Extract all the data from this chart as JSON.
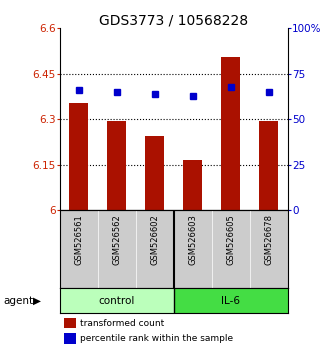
{
  "title": "GDS3773 / 10568228",
  "samples": [
    "GSM526561",
    "GSM526562",
    "GSM526602",
    "GSM526603",
    "GSM526605",
    "GSM526678"
  ],
  "groups": [
    "control",
    "control",
    "control",
    "IL-6",
    "IL-6",
    "IL-6"
  ],
  "bar_values": [
    6.355,
    6.295,
    6.245,
    6.165,
    6.505,
    6.295
  ],
  "percentile_values": [
    66,
    65,
    64,
    63,
    68,
    65
  ],
  "bar_bottom": 6.0,
  "ylim_left": [
    6.0,
    6.6
  ],
  "ylim_right": [
    0,
    100
  ],
  "yticks_left": [
    6.0,
    6.15,
    6.3,
    6.45,
    6.6
  ],
  "yticks_right": [
    0,
    25,
    50,
    75,
    100
  ],
  "ytick_labels_left": [
    "6",
    "6.15",
    "6.3",
    "6.45",
    "6.6"
  ],
  "ytick_labels_right": [
    "0",
    "25",
    "50",
    "75",
    "100%"
  ],
  "hlines": [
    6.15,
    6.3,
    6.45
  ],
  "bar_color": "#aa1100",
  "dot_color": "#0000cc",
  "control_color": "#bbffbb",
  "il6_color": "#44dd44",
  "title_fontsize": 10,
  "legend_items": [
    "transformed count",
    "percentile rank within the sample"
  ],
  "agent_label": "agent",
  "bar_width": 0.5
}
